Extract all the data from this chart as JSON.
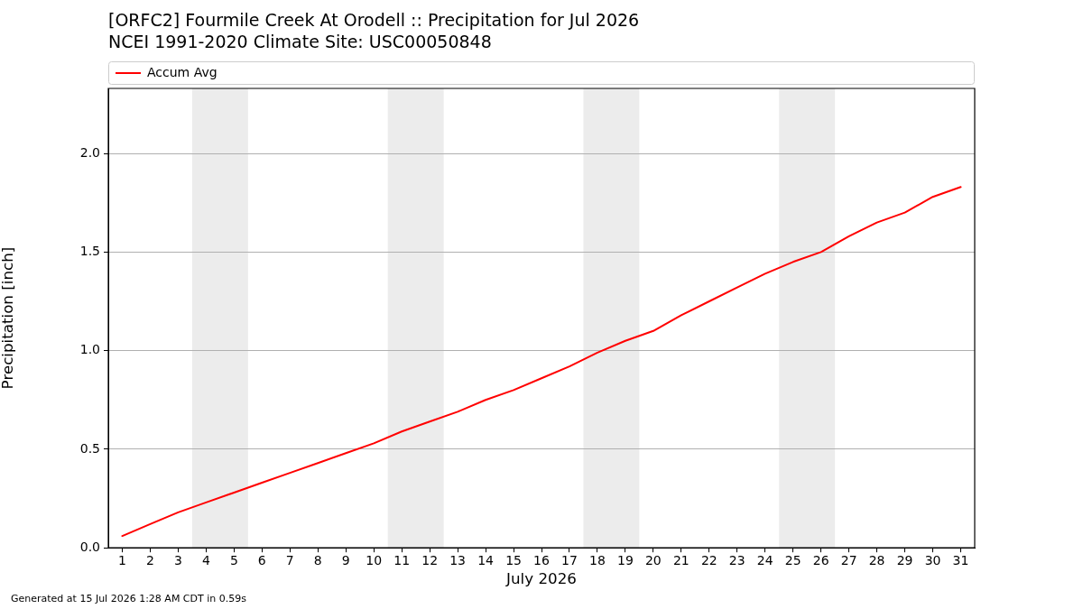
{
  "chart_data": {
    "type": "line",
    "title": "[ORFC2] Fourmile Creek At Orodell :: Precipitation for Jul 2026",
    "subtitle": "NCEI 1991-2020 Climate Site: USC00050848",
    "xlabel": "July 2026",
    "ylabel": "Precipitation [inch]",
    "annotations": [
      "Generated at 15 Jul 2026 1:28 AM CDT in 0.59s"
    ],
    "x": [
      1,
      2,
      3,
      4,
      5,
      6,
      7,
      8,
      9,
      10,
      11,
      12,
      13,
      14,
      15,
      16,
      17,
      18,
      19,
      20,
      21,
      22,
      23,
      24,
      25,
      26,
      27,
      28,
      29,
      30,
      31
    ],
    "series": [
      {
        "name": "Accum Avg",
        "color": "#ff0000",
        "values": [
          0.06,
          0.12,
          0.18,
          0.23,
          0.28,
          0.33,
          0.38,
          0.43,
          0.48,
          0.53,
          0.59,
          0.64,
          0.69,
          0.75,
          0.8,
          0.86,
          0.92,
          0.99,
          1.05,
          1.1,
          1.18,
          1.25,
          1.32,
          1.39,
          1.45,
          1.5,
          1.58,
          1.65,
          1.7,
          1.78,
          1.83
        ]
      }
    ],
    "xlim": [
      0.5,
      31.5
    ],
    "xticks": [
      1,
      2,
      3,
      4,
      5,
      6,
      7,
      8,
      9,
      10,
      11,
      12,
      13,
      14,
      15,
      16,
      17,
      18,
      19,
      20,
      21,
      22,
      23,
      24,
      25,
      26,
      27,
      28,
      29,
      30,
      31
    ],
    "ylim": [
      0,
      2.33
    ],
    "yticks": [
      {
        "value": 0,
        "label": "0.0"
      },
      0.5,
      {
        "value": 1,
        "label": "1.0"
      },
      1.5,
      {
        "value": 2,
        "label": "2.0"
      }
    ],
    "bands": [
      {
        "axis": "x",
        "from": 3.5,
        "to": 5.5,
        "color": "#ececec"
      },
      {
        "axis": "x",
        "from": 10.5,
        "to": 12.5,
        "color": "#ececec"
      },
      {
        "axis": "x",
        "from": 17.5,
        "to": 19.5,
        "color": "#ececec"
      },
      {
        "axis": "x",
        "from": 24.5,
        "to": 26.5,
        "color": "#ececec"
      }
    ],
    "grid": "y",
    "legend": "top left",
    "marker": "none",
    "line_style": "solid"
  }
}
